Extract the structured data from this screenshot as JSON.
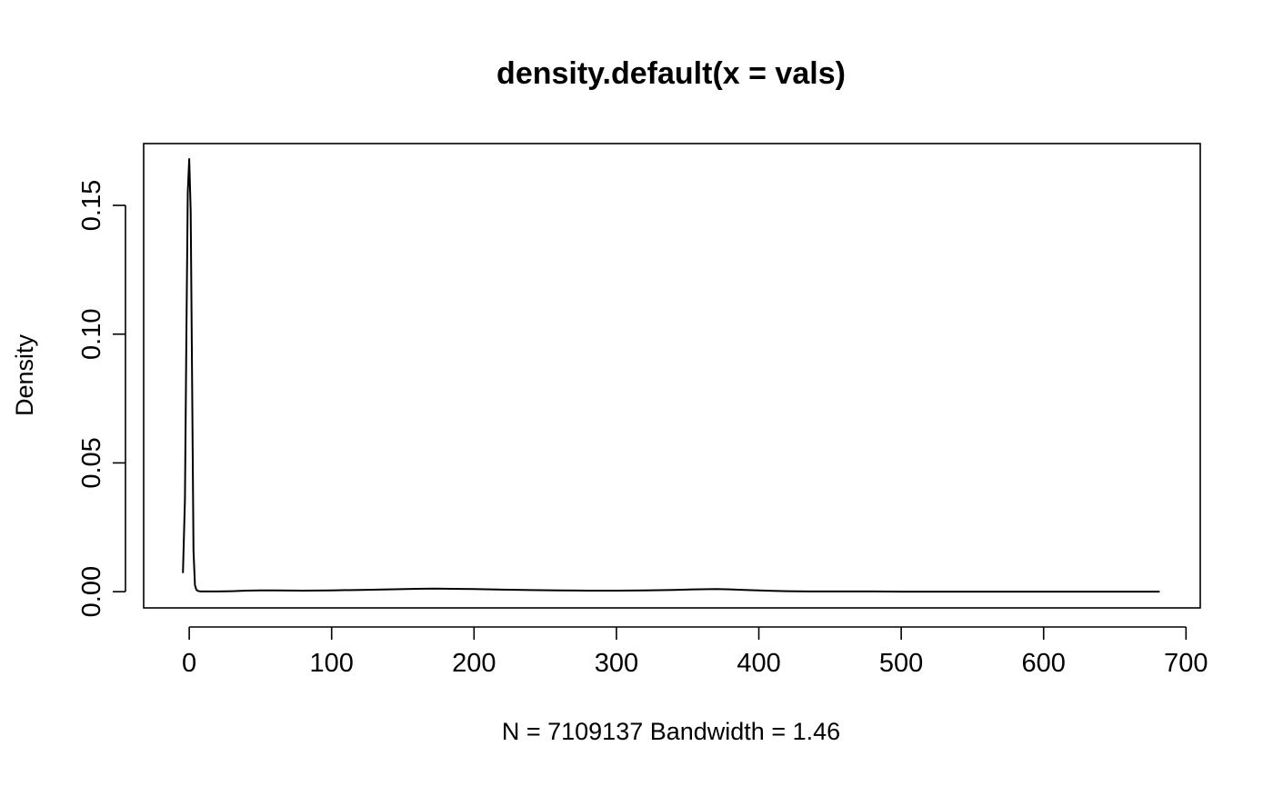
{
  "chart_data": {
    "type": "line",
    "title": "density.default(x = vals)",
    "xlabel": "N = 7109137   Bandwidth = 1.46",
    "ylabel": "Density",
    "xlim": [
      -32,
      710
    ],
    "ylim": [
      -0.0063,
      0.174
    ],
    "x_ticks": [
      0,
      100,
      200,
      300,
      400,
      500,
      600,
      700
    ],
    "y_ticks": [
      0.0,
      0.05,
      0.1,
      0.15
    ],
    "x_tick_labels": [
      "0",
      "100",
      "200",
      "300",
      "400",
      "500",
      "600",
      "700"
    ],
    "y_tick_labels": [
      "0.00",
      "0.05",
      "0.10",
      "0.15"
    ],
    "grid": false,
    "legend": "none",
    "series": [
      {
        "x": [
          -4.4,
          -3,
          -2,
          -1,
          0,
          1,
          2,
          3,
          4,
          5,
          6,
          8,
          10,
          20,
          30,
          40,
          50,
          60,
          80,
          100,
          120,
          140,
          160,
          172,
          185,
          200,
          220,
          240,
          260,
          280,
          300,
          320,
          340,
          355,
          370,
          380,
          390,
          400,
          410,
          420,
          440,
          460,
          480,
          500,
          550,
          600,
          650,
          681.5
        ],
        "y": [
          0.0072,
          0.036,
          0.1,
          0.155,
          0.168,
          0.148,
          0.085,
          0.016,
          0.0025,
          0.0008,
          0.0003,
          0.0001,
          0.0001,
          0.0001,
          0.0002,
          0.0004,
          0.0005,
          0.0005,
          0.0004,
          0.0005,
          0.0007,
          0.0009,
          0.0011,
          0.0012,
          0.0011,
          0.001,
          0.0008,
          0.0006,
          0.0005,
          0.0004,
          0.0004,
          0.0005,
          0.0007,
          0.0009,
          0.001,
          0.0009,
          0.0007,
          0.0005,
          0.0003,
          0.0002,
          0.0001,
          0.0001,
          0.0001,
          0.0,
          0.0,
          0.0,
          0.0,
          0.0
        ]
      }
    ]
  }
}
